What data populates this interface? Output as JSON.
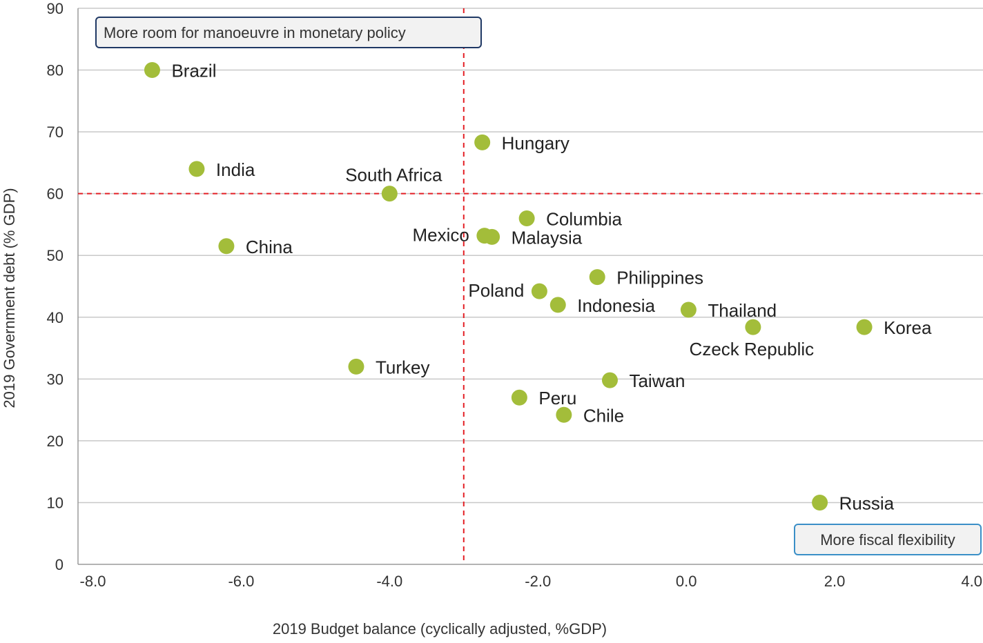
{
  "chart_data": {
    "type": "scatter",
    "xlabel": "2019 Budget balance (cyclically adjusted, %GDP)",
    "ylabel": "2019 Government debt (% GDP)",
    "xlim": [
      -8.2,
      4.0
    ],
    "ylim": [
      0,
      90
    ],
    "x_ticks": [
      -8,
      -6,
      -4,
      -2,
      0,
      2,
      4
    ],
    "x_tick_labels": [
      "-8.0",
      "-6.0",
      "-4.0",
      "-2.0",
      "0.0",
      "2.0",
      "4.0"
    ],
    "y_ticks": [
      0,
      10,
      20,
      30,
      40,
      50,
      60,
      70,
      80,
      90
    ],
    "y_tick_labels": [
      "0",
      "10",
      "20",
      "30",
      "40",
      "50",
      "60",
      "70",
      "80",
      "90"
    ],
    "grid": "horizontal",
    "reference_lines": {
      "x": -3,
      "y": 60,
      "color": "#e31e24",
      "style": "dashed"
    },
    "marker_color": "#a3bd3a",
    "points": [
      {
        "label": "Brazil",
        "x": -7.2,
        "y": 80,
        "label_pos": "right"
      },
      {
        "label": "India",
        "x": -6.6,
        "y": 64,
        "label_pos": "right"
      },
      {
        "label": "China",
        "x": -6.2,
        "y": 51.5,
        "label_pos": "right"
      },
      {
        "label": "South Africa",
        "x": -4.0,
        "y": 60,
        "label_pos": "above"
      },
      {
        "label": "Turkey",
        "x": -4.45,
        "y": 32,
        "label_pos": "right"
      },
      {
        "label": "Hungary",
        "x": -2.75,
        "y": 68.3,
        "label_pos": "right"
      },
      {
        "label": "Columbia",
        "x": -2.15,
        "y": 56,
        "label_pos": "right"
      },
      {
        "label": "Mexico",
        "x": -2.72,
        "y": 53.2,
        "label_pos": "left"
      },
      {
        "label": "Malaysia",
        "x": -2.62,
        "y": 53,
        "label_pos": "right"
      },
      {
        "label": "Philippines",
        "x": -1.2,
        "y": 46.5,
        "label_pos": "right"
      },
      {
        "label": "Poland",
        "x": -1.98,
        "y": 44.2,
        "label_pos": "left"
      },
      {
        "label": "Indonesia",
        "x": -1.73,
        "y": 42,
        "label_pos": "right"
      },
      {
        "label": "Thailand",
        "x": 0.03,
        "y": 41.2,
        "label_pos": "right"
      },
      {
        "label": "Czeck Republic",
        "x": 0.9,
        "y": 38.4,
        "label_pos": "below"
      },
      {
        "label": "Korea",
        "x": 2.4,
        "y": 38.4,
        "label_pos": "right"
      },
      {
        "label": "Taiwan",
        "x": -1.03,
        "y": 29.8,
        "label_pos": "right"
      },
      {
        "label": "Peru",
        "x": -2.25,
        "y": 27,
        "label_pos": "right"
      },
      {
        "label": "Chile",
        "x": -1.65,
        "y": 24.2,
        "label_pos": "right"
      },
      {
        "label": "Russia",
        "x": 1.8,
        "y": 10,
        "label_pos": "right"
      }
    ],
    "annotations": [
      {
        "text": "More room for manoeuvre in monetary policy",
        "position": "top-left",
        "border_color": "#1f3864"
      },
      {
        "text": "More fiscal flexibility",
        "position": "bottom-right",
        "border_color": "#3a8fc7"
      }
    ]
  }
}
